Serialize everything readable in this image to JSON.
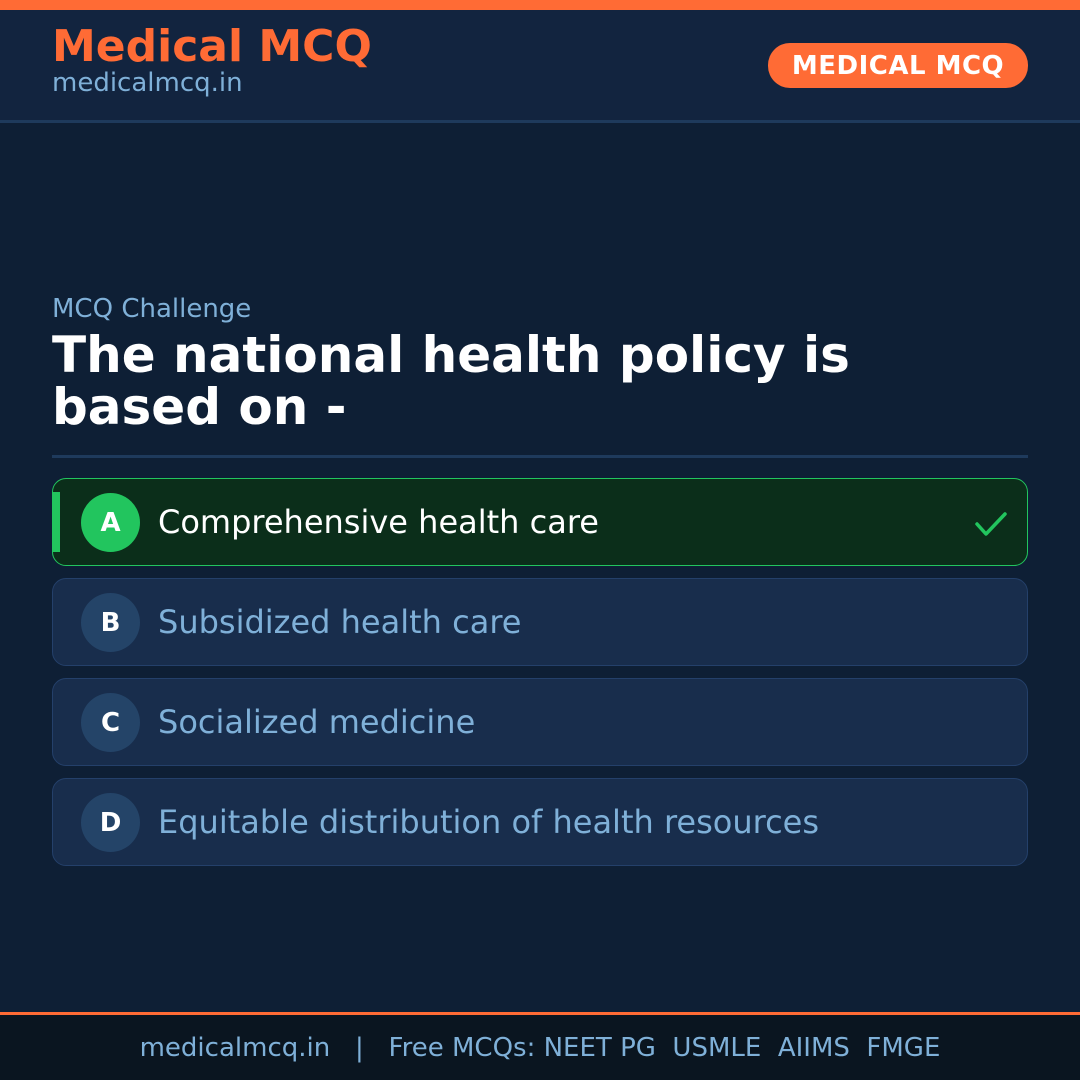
{
  "header": {
    "brand": "Medical MCQ",
    "site": "medicalmcq.in",
    "badge": "MEDICAL MCQ"
  },
  "colors": {
    "accent": "#ff6b35",
    "correct": "#22c55e",
    "background": "#0e1f35"
  },
  "question": {
    "kicker": "MCQ Challenge",
    "text": "The national health policy is based on -",
    "options": [
      {
        "letter": "A",
        "text": "Comprehensive health care",
        "correct": true
      },
      {
        "letter": "B",
        "text": "Subsidized health care",
        "correct": false
      },
      {
        "letter": "C",
        "text": "Socialized medicine",
        "correct": false
      },
      {
        "letter": "D",
        "text": "Equitable distribution of health resources",
        "correct": false
      }
    ],
    "correct_icon": "checkmark-icon"
  },
  "footer": {
    "text": "medicalmcq.in   |   Free MCQs: NEET PG  USMLE  AIIMS  FMGE"
  }
}
